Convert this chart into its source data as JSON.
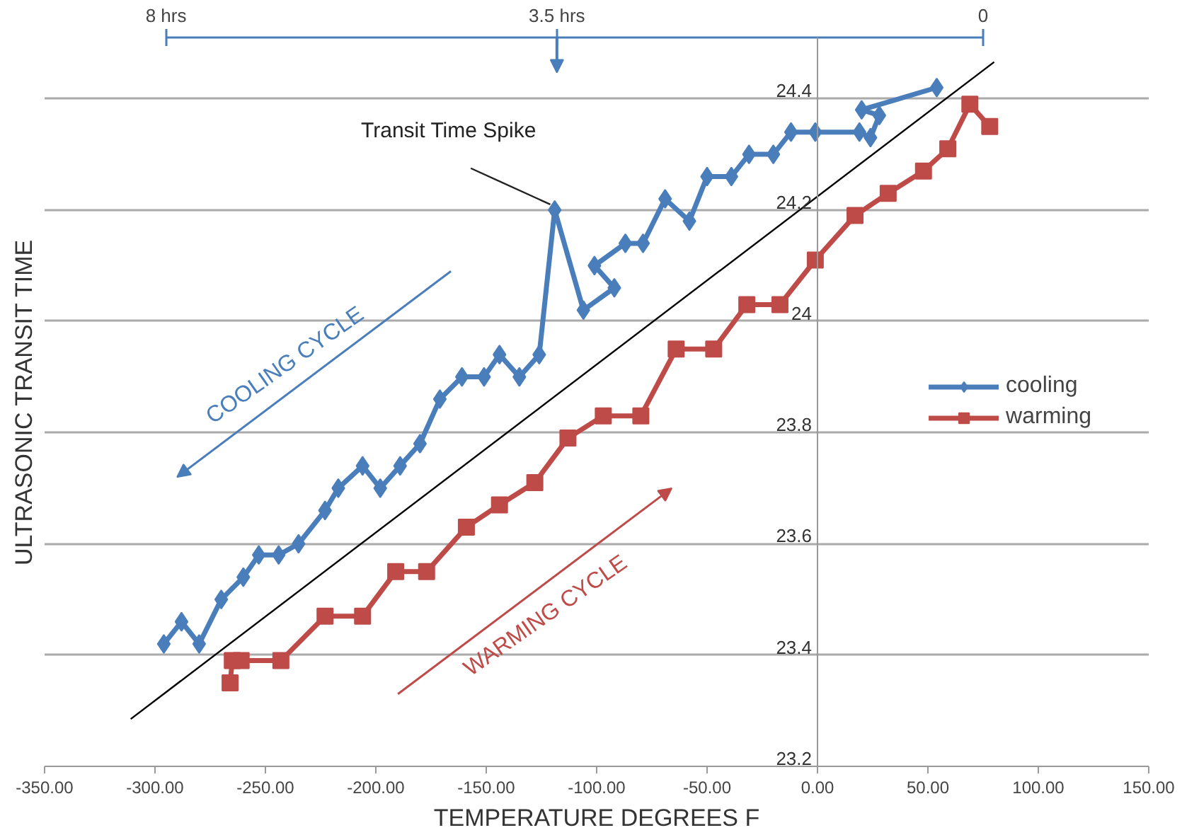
{
  "chart_data": {
    "type": "line",
    "xlabel": "TEMPERATURE DEGREES F",
    "ylabel": "ULTRASONIC TRANSIT TIME",
    "xlim": [
      -350,
      150
    ],
    "xticks": [
      {
        "value": -350,
        "label": "-350.00"
      },
      {
        "value": -300,
        "label": "-300.00"
      },
      {
        "value": -250,
        "label": "-250.00"
      },
      {
        "value": -200,
        "label": "-200.00"
      },
      {
        "value": -150,
        "label": "-150.00"
      },
      {
        "value": -100,
        "label": "-100.00"
      },
      {
        "value": -50,
        "label": "-50.00"
      },
      {
        "value": 0,
        "label": "0.00"
      },
      {
        "value": 50,
        "label": "50.00"
      },
      {
        "value": 100,
        "label": "100.00"
      },
      {
        "value": 150,
        "label": "150.00"
      }
    ],
    "ylim": [
      23.2,
      24.51
    ],
    "yticks": [
      23.2,
      23.4,
      23.6,
      23.8,
      24,
      24.2,
      24.4
    ],
    "grid": "y",
    "legend": "right",
    "series": [
      {
        "name": "cooling",
        "color": "#4a7ebb",
        "marker": "diamond",
        "x": [
          -296,
          -288,
          -280,
          -270,
          -260,
          -253,
          -244,
          -235,
          -223,
          -217,
          -206,
          -198,
          -189,
          -180,
          -171,
          -161,
          -151,
          -144,
          -135,
          -126,
          -119,
          -106,
          -92,
          -101,
          -87,
          -79,
          -69,
          -58,
          -50,
          -39,
          -31,
          -20,
          -12,
          -1,
          19,
          24,
          28,
          20,
          54
        ],
        "values": [
          23.42,
          23.46,
          23.42,
          23.5,
          23.54,
          23.58,
          23.58,
          23.6,
          23.66,
          23.7,
          23.74,
          23.7,
          23.74,
          23.78,
          23.86,
          23.9,
          23.9,
          23.94,
          23.9,
          23.94,
          24.2,
          24.02,
          24.06,
          24.1,
          24.14,
          24.14,
          24.22,
          24.18,
          24.26,
          24.26,
          24.3,
          24.3,
          24.34,
          24.34,
          24.34,
          24.33,
          24.37,
          24.38,
          24.42
        ]
      },
      {
        "name": "warming",
        "color": "#be4b48",
        "marker": "square",
        "x": [
          -266,
          -265,
          -261,
          -243,
          -223,
          -206,
          -191,
          -177,
          -159,
          -144,
          -128,
          -113,
          -97,
          -80,
          -64,
          -47,
          -32,
          -17,
          -1,
          17,
          32,
          48,
          59,
          69,
          78
        ],
        "values": [
          23.35,
          23.39,
          23.39,
          23.39,
          23.47,
          23.47,
          23.55,
          23.55,
          23.63,
          23.67,
          23.71,
          23.79,
          23.83,
          23.83,
          23.95,
          23.95,
          24.03,
          24.03,
          24.11,
          24.19,
          24.23,
          24.27,
          24.31,
          24.39,
          24.35
        ]
      },
      {
        "type": "line",
        "color": "#000000",
        "marker": "none",
        "x": [
          -311,
          80
        ],
        "values": [
          23.285,
          24.466
        ]
      }
    ],
    "annotations": [
      {
        "text": "Transit Time Spike",
        "x": -119,
        "y": 24.2
      },
      "COOLING CYCLE",
      "WARMING CYCLE",
      "8 hrs",
      "3.5 hrs",
      "0"
    ]
  }
}
